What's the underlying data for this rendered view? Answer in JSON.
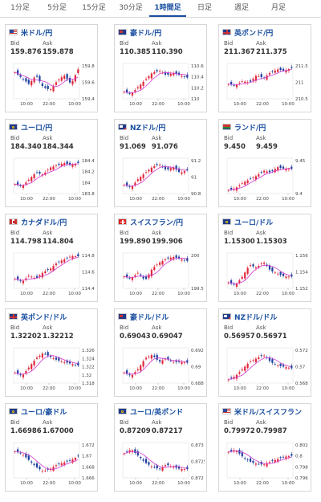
{
  "tabs": [
    {
      "label": "1分足"
    },
    {
      "label": "5分足"
    },
    {
      "label": "15分足"
    },
    {
      "label": "30分足"
    },
    {
      "label": "1時間足",
      "active": true
    },
    {
      "label": "日足"
    },
    {
      "label": "週足"
    },
    {
      "label": "月足"
    }
  ],
  "labels": {
    "bid": "Bid",
    "ask": "Ask"
  },
  "colors": {
    "accent": "#1a4fa0",
    "up": "#e0283c",
    "down": "#1b3f9e",
    "ma": "#d23ad2"
  },
  "pairs": [
    {
      "name": "米ドル/円",
      "bid": "159.876",
      "ask": "159.878",
      "flag": "us",
      "chart_data": {
        "type": "candlestick",
        "x_labels": [
          "10:00",
          "22:00",
          "10:00"
        ],
        "y_ticks": [
          "159.8",
          "159.6",
          "159.4"
        ],
        "ylim": [
          159.3,
          159.9
        ],
        "trend": [
          159.75,
          159.65,
          159.55,
          159.7,
          159.5,
          159.45,
          159.6,
          159.7,
          159.55,
          159.8
        ]
      }
    },
    {
      "name": "豪ドル/円",
      "bid": "110.385",
      "ask": "110.390",
      "flag": "au",
      "chart_data": {
        "type": "candlestick",
        "x_labels": [
          "10:00",
          "22:00",
          "10:00"
        ],
        "y_ticks": [
          "110.6",
          "110.4",
          "110.2",
          "110"
        ],
        "ylim": [
          109.9,
          110.65
        ],
        "trend": [
          110.05,
          110.0,
          110.15,
          110.3,
          110.45,
          110.5,
          110.4,
          110.45,
          110.4,
          110.35
        ]
      }
    },
    {
      "name": "英ポンド/円",
      "bid": "211.367",
      "ask": "211.375",
      "flag": "gb",
      "chart_data": {
        "type": "candlestick",
        "x_labels": [
          "10:00",
          "22:00",
          "10:00"
        ],
        "y_ticks": [
          "211.5",
          "211",
          "210.5"
        ],
        "ylim": [
          210.4,
          211.6
        ],
        "trend": [
          210.9,
          210.85,
          211.0,
          210.95,
          211.2,
          211.1,
          211.3,
          211.4,
          211.35,
          211.45
        ]
      }
    },
    {
      "name": "ユーロ/円",
      "bid": "184.340",
      "ask": "184.344",
      "flag": "eu",
      "chart_data": {
        "type": "candlestick",
        "x_labels": [
          "10:00",
          "22:00",
          "10:00"
        ],
        "y_ticks": [
          "184.4",
          "184.2",
          "184",
          "183.8"
        ],
        "ylim": [
          183.7,
          184.45
        ],
        "trend": [
          183.9,
          183.85,
          184.0,
          184.15,
          184.1,
          184.25,
          184.3,
          184.35,
          184.3,
          184.35
        ]
      }
    },
    {
      "name": "NZドル/円",
      "bid": "91.069",
      "ask": "91.076",
      "flag": "nz",
      "chart_data": {
        "type": "candlestick",
        "x_labels": [
          "10:00",
          "22:00",
          "10:00"
        ],
        "y_ticks": [
          "91.2",
          "91",
          "90.8"
        ],
        "ylim": [
          90.7,
          91.3
        ],
        "trend": [
          90.85,
          90.8,
          90.95,
          91.05,
          91.15,
          91.2,
          91.1,
          91.15,
          91.05,
          91.1
        ]
      }
    },
    {
      "name": "ランド/円",
      "bid": "9.450",
      "ask": "9.459",
      "flag": "za",
      "chart_data": {
        "type": "candlestick",
        "x_labels": [
          "10:00",
          "22:00",
          "10:00"
        ],
        "y_ticks": [
          "9.45",
          "9.4"
        ],
        "ylim": [
          9.38,
          9.48
        ],
        "trend": [
          9.39,
          9.395,
          9.41,
          9.42,
          9.43,
          9.445,
          9.44,
          9.455,
          9.45,
          9.45
        ]
      }
    },
    {
      "name": "カナダドル/円",
      "bid": "114.798",
      "ask": "114.804",
      "flag": "ca",
      "chart_data": {
        "type": "candlestick",
        "x_labels": [
          "10:00",
          "22:00",
          "10:00"
        ],
        "y_ticks": [
          "114.8",
          "114.6",
          "114.4"
        ],
        "ylim": [
          114.3,
          114.85
        ],
        "trend": [
          114.45,
          114.4,
          114.5,
          114.45,
          114.55,
          114.6,
          114.7,
          114.75,
          114.8,
          114.8
        ]
      }
    },
    {
      "name": "スイスフラン/円",
      "bid": "199.890",
      "ask": "199.906",
      "flag": "ch",
      "chart_data": {
        "type": "candlestick",
        "x_labels": [
          "10:00",
          "22:00",
          "10:00"
        ],
        "y_ticks": [
          "200",
          "199.5"
        ],
        "ylim": [
          199.2,
          200.1
        ],
        "trend": [
          199.5,
          199.45,
          199.6,
          199.4,
          199.7,
          199.85,
          199.95,
          200.0,
          199.95,
          199.9
        ]
      }
    },
    {
      "name": "ユーロ/ドル",
      "bid": "1.15300",
      "ask": "1.15303",
      "flag": "eu",
      "chart_data": {
        "type": "candlestick",
        "x_labels": [
          "10:00",
          "22:00",
          "10:00"
        ],
        "y_ticks": [
          "1.156",
          "1.154",
          "1.152"
        ],
        "ylim": [
          1.151,
          1.157
        ],
        "trend": [
          1.152,
          1.1515,
          1.153,
          1.155,
          1.1545,
          1.1555,
          1.154,
          1.1535,
          1.153,
          1.153
        ]
      }
    },
    {
      "name": "英ポンド/ドル",
      "bid": "1.32202",
      "ask": "1.32212",
      "flag": "gb",
      "chart_data": {
        "type": "candlestick",
        "x_labels": [
          "10:00",
          "22:00",
          "10:00"
        ],
        "y_ticks": [
          "1.326",
          "1.324",
          "1.322",
          "1.32",
          "1.318"
        ],
        "ylim": [
          1.317,
          1.327
        ],
        "trend": [
          1.32,
          1.319,
          1.3215,
          1.324,
          1.3255,
          1.3245,
          1.3235,
          1.323,
          1.3225,
          1.322
        ]
      }
    },
    {
      "name": "豪ドル/ドル",
      "bid": "0.69043",
      "ask": "0.69047",
      "flag": "au",
      "chart_data": {
        "type": "candlestick",
        "x_labels": [
          "10:00",
          "22:00",
          "10:00"
        ],
        "y_ticks": [
          "0.692",
          "0.69",
          "0.688"
        ],
        "ylim": [
          0.6875,
          0.6925
        ],
        "trend": [
          0.689,
          0.6885,
          0.6895,
          0.691,
          0.6915,
          0.6905,
          0.691,
          0.6905,
          0.6905,
          0.6904
        ]
      }
    },
    {
      "name": "NZドル/ドル",
      "bid": "0.56957",
      "ask": "0.56971",
      "flag": "nz",
      "chart_data": {
        "type": "candlestick",
        "x_labels": [
          "10:00",
          "22:00",
          "10:00"
        ],
        "y_ticks": [
          "0.572",
          "0.57",
          "0.568"
        ],
        "ylim": [
          0.5675,
          0.5725
        ],
        "trend": [
          0.568,
          0.5685,
          0.5695,
          0.5705,
          0.571,
          0.5715,
          0.5705,
          0.57,
          0.5698,
          0.5696
        ]
      }
    },
    {
      "name": "ユーロ/豪ドル",
      "bid": "1.66986",
      "ask": "1.67000",
      "flag": "eu",
      "chart_data": {
        "type": "candlestick",
        "x_labels": [
          "10:00",
          "22:00",
          "10:00"
        ],
        "y_ticks": [
          "1.672",
          "1.67",
          "1.668",
          "1.666"
        ],
        "ylim": [
          1.665,
          1.673
        ],
        "trend": [
          1.671,
          1.6705,
          1.669,
          1.6675,
          1.6665,
          1.667,
          1.668,
          1.6685,
          1.669,
          1.6699
        ]
      }
    },
    {
      "name": "ユーロ/英ポンド",
      "bid": "0.87209",
      "ask": "0.87217",
      "flag": "eu",
      "chart_data": {
        "type": "candlestick",
        "x_labels": [
          "10:00",
          "22:00",
          "10:00"
        ],
        "y_ticks": [
          "0.873",
          "0.8725",
          "0.872"
        ],
        "ylim": [
          0.8717,
          0.8733
        ],
        "trend": [
          0.8728,
          0.873,
          0.8727,
          0.8724,
          0.8722,
          0.8721,
          0.8723,
          0.8722,
          0.8721,
          0.8721
        ]
      }
    },
    {
      "name": "米ドル/スイスフラン",
      "bid": "0.79972",
      "ask": "0.79987",
      "flag": "us",
      "chart_data": {
        "type": "candlestick",
        "x_labels": [
          "10:00",
          "22:00",
          "10:00"
        ],
        "y_ticks": [
          "0.802",
          "0.8",
          "0.798",
          "0.796"
        ],
        "ylim": [
          0.795,
          0.8025
        ],
        "trend": [
          0.8005,
          0.801,
          0.7995,
          0.7985,
          0.798,
          0.7978,
          0.7985,
          0.799,
          0.7995,
          0.7997
        ]
      }
    }
  ]
}
